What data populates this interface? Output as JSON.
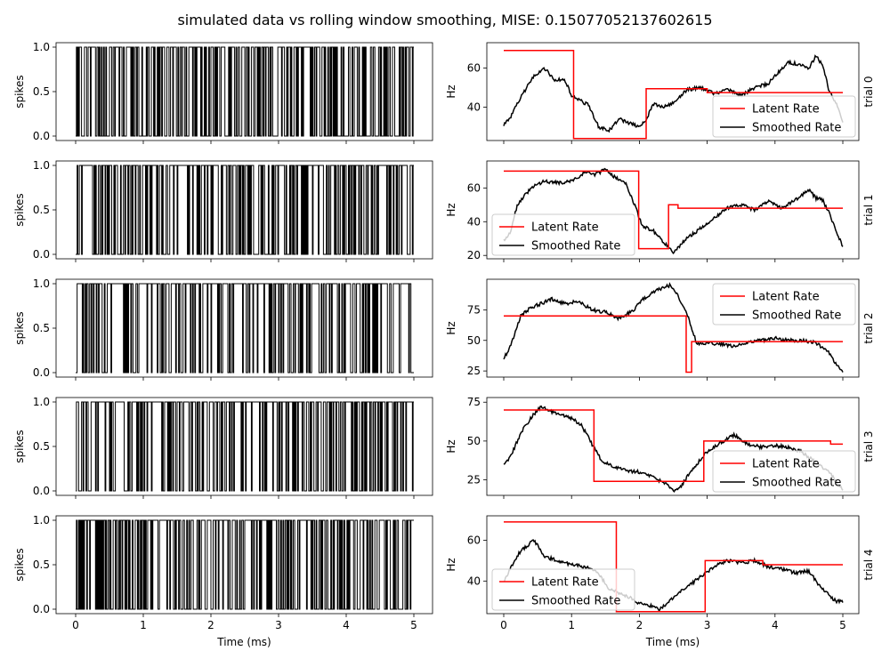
{
  "title": "simulated data vs rolling window smoothing, MISE: 0.15077052137602615",
  "chart_data": {
    "type": "line",
    "x_range": [
      0,
      5
    ],
    "x_ticks": [
      0,
      1,
      2,
      3,
      4,
      5
    ],
    "x_tick_labels": [
      "0",
      "1",
      "2",
      "3",
      "4",
      "5"
    ],
    "xlabel": "Time (ms)",
    "spike_panel": {
      "ylabel": "spikes",
      "y_range": [
        0,
        1
      ],
      "y_ticks": [
        0,
        0.5,
        1
      ],
      "y_tick_labels": [
        "0.0",
        "0.5",
        "1.0"
      ],
      "line_color": "#000000"
    },
    "rate_panel": {
      "ylabel": "Hz",
      "latent_color": "#ff0000",
      "smoothed_color": "#000000"
    },
    "legend": {
      "latent_label": "Latent Rate",
      "smoothed_label": "Smoothed Rate"
    },
    "trials": [
      {
        "label": "trial 0",
        "legend_position": "lower-right",
        "y_range": [
          23,
          73
        ],
        "y_ticks": [
          40,
          60
        ],
        "y_tick_labels": [
          "40",
          "60"
        ],
        "spike_density": 0.55,
        "latent_rate": {
          "x": [
            0,
            1.03,
            1.03,
            2.1,
            2.1,
            3.0,
            3.0,
            5.0
          ],
          "y": [
            69,
            69,
            24,
            24,
            49.5,
            49.5,
            47.5,
            47.5
          ]
        },
        "smoothed_rate": {
          "x": [
            0,
            0.1,
            0.3,
            0.45,
            0.6,
            0.75,
            0.9,
            1.0,
            1.1,
            1.25,
            1.4,
            1.55,
            1.7,
            1.85,
            2.0,
            2.1,
            2.2,
            2.35,
            2.5,
            2.7,
            2.9,
            3.1,
            3.3,
            3.5,
            3.7,
            3.9,
            4.05,
            4.2,
            4.35,
            4.5,
            4.6,
            4.7,
            4.8,
            4.9,
            5.0
          ],
          "y": [
            31,
            35,
            48,
            56,
            60,
            54,
            54,
            46,
            44,
            41,
            30,
            28,
            34,
            32,
            30,
            33,
            42,
            40,
            42,
            49,
            50,
            47,
            49,
            46,
            50,
            52,
            58,
            63,
            62,
            60,
            66,
            62,
            48,
            42,
            33
          ]
        }
      },
      {
        "label": "trial 1",
        "legend_position": "lower-left",
        "y_range": [
          18,
          76
        ],
        "y_ticks": [
          20,
          40,
          60
        ],
        "y_tick_labels": [
          "20",
          "40",
          "60"
        ],
        "spike_density": 0.65,
        "latent_rate": {
          "x": [
            0,
            1.99,
            1.99,
            2.43,
            2.43,
            2.57,
            2.57,
            5.0
          ],
          "y": [
            70,
            70,
            24,
            24,
            50,
            50,
            48,
            48
          ]
        },
        "smoothed_rate": {
          "x": [
            0,
            0.1,
            0.2,
            0.4,
            0.6,
            0.8,
            1.0,
            1.2,
            1.35,
            1.5,
            1.65,
            1.8,
            1.9,
            2.05,
            2.2,
            2.35,
            2.5,
            2.7,
            2.9,
            3.1,
            3.3,
            3.5,
            3.7,
            3.9,
            4.1,
            4.3,
            4.5,
            4.6,
            4.7,
            4.8,
            4.9,
            5.0
          ],
          "y": [
            29,
            34,
            50,
            60,
            64,
            63,
            64,
            69,
            68,
            71,
            66,
            63,
            53,
            37,
            35,
            28,
            22,
            30,
            36,
            42,
            48,
            50,
            47,
            52,
            48,
            53,
            59,
            54,
            53,
            45,
            35,
            25
          ]
        }
      },
      {
        "label": "trial 2",
        "legend_position": "upper-right",
        "y_range": [
          20,
          100
        ],
        "y_ticks": [
          25,
          50,
          75
        ],
        "y_tick_labels": [
          "25",
          "50",
          "75"
        ],
        "spike_density": 0.72,
        "latent_rate": {
          "x": [
            0,
            2.69,
            2.69,
            2.77,
            2.77,
            5.0
          ],
          "y": [
            70,
            70,
            24,
            24,
            49,
            49
          ]
        },
        "smoothed_rate": {
          "x": [
            0,
            0.1,
            0.25,
            0.4,
            0.55,
            0.7,
            0.9,
            1.1,
            1.3,
            1.5,
            1.7,
            1.9,
            2.05,
            2.2,
            2.3,
            2.45,
            2.55,
            2.7,
            2.85,
            3.0,
            3.2,
            3.4,
            3.6,
            3.8,
            4.0,
            4.2,
            4.4,
            4.6,
            4.8,
            4.9,
            5.0
          ],
          "y": [
            35,
            45,
            70,
            77,
            80,
            84,
            80,
            82,
            75,
            73,
            68,
            74,
            84,
            89,
            92,
            95,
            88,
            72,
            47,
            48,
            47,
            45,
            49,
            50,
            52,
            50,
            50,
            48,
            40,
            30,
            25
          ]
        }
      },
      {
        "label": "trial 3",
        "legend_position": "lower-right",
        "y_range": [
          15,
          78
        ],
        "y_ticks": [
          25,
          50,
          75
        ],
        "y_tick_labels": [
          "25",
          "50",
          "75"
        ],
        "spike_density": 0.68,
        "latent_rate": {
          "x": [
            0,
            1.33,
            1.33,
            2.95,
            2.95,
            4.82,
            4.82,
            5.0
          ],
          "y": [
            70,
            70,
            24,
            24,
            50,
            50,
            48,
            48
          ]
        },
        "smoothed_rate": {
          "x": [
            0,
            0.1,
            0.25,
            0.4,
            0.55,
            0.75,
            0.95,
            1.15,
            1.3,
            1.45,
            1.6,
            1.8,
            2.0,
            2.2,
            2.4,
            2.5,
            2.6,
            2.8,
            3.0,
            3.2,
            3.4,
            3.6,
            3.8,
            4.0,
            4.2,
            4.4,
            4.6,
            4.8,
            4.9,
            5.0
          ],
          "y": [
            34,
            40,
            55,
            65,
            72,
            68,
            66,
            60,
            48,
            37,
            34,
            31,
            30,
            27,
            22,
            18,
            20,
            33,
            43,
            49,
            54,
            48,
            46,
            47,
            46,
            43,
            36,
            30,
            24,
            18
          ]
        }
      },
      {
        "label": "trial 4",
        "legend_position": "lower-left",
        "y_range": [
          24,
          72
        ],
        "y_ticks": [
          40,
          60
        ],
        "y_tick_labels": [
          "40",
          "60"
        ],
        "spike_density": 0.6,
        "latent_rate": {
          "x": [
            0,
            1.66,
            1.66,
            2.97,
            2.97,
            3.82,
            3.82,
            5.0
          ],
          "y": [
            69,
            69,
            25,
            25,
            50,
            50,
            48,
            48
          ]
        },
        "smoothed_rate": {
          "x": [
            0,
            0.1,
            0.25,
            0.45,
            0.6,
            0.8,
            1.0,
            1.2,
            1.4,
            1.55,
            1.7,
            1.85,
            2.0,
            2.15,
            2.3,
            2.5,
            2.7,
            2.9,
            3.1,
            3.3,
            3.5,
            3.7,
            3.9,
            4.1,
            4.3,
            4.5,
            4.65,
            4.8,
            4.9,
            5.0
          ],
          "y": [
            40,
            46,
            55,
            60,
            52,
            50,
            48,
            47,
            44,
            36,
            34,
            32,
            29,
            28,
            26,
            32,
            37,
            42,
            47,
            50,
            49,
            50,
            47,
            46,
            44,
            45,
            38,
            33,
            30,
            30
          ]
        }
      }
    ]
  }
}
